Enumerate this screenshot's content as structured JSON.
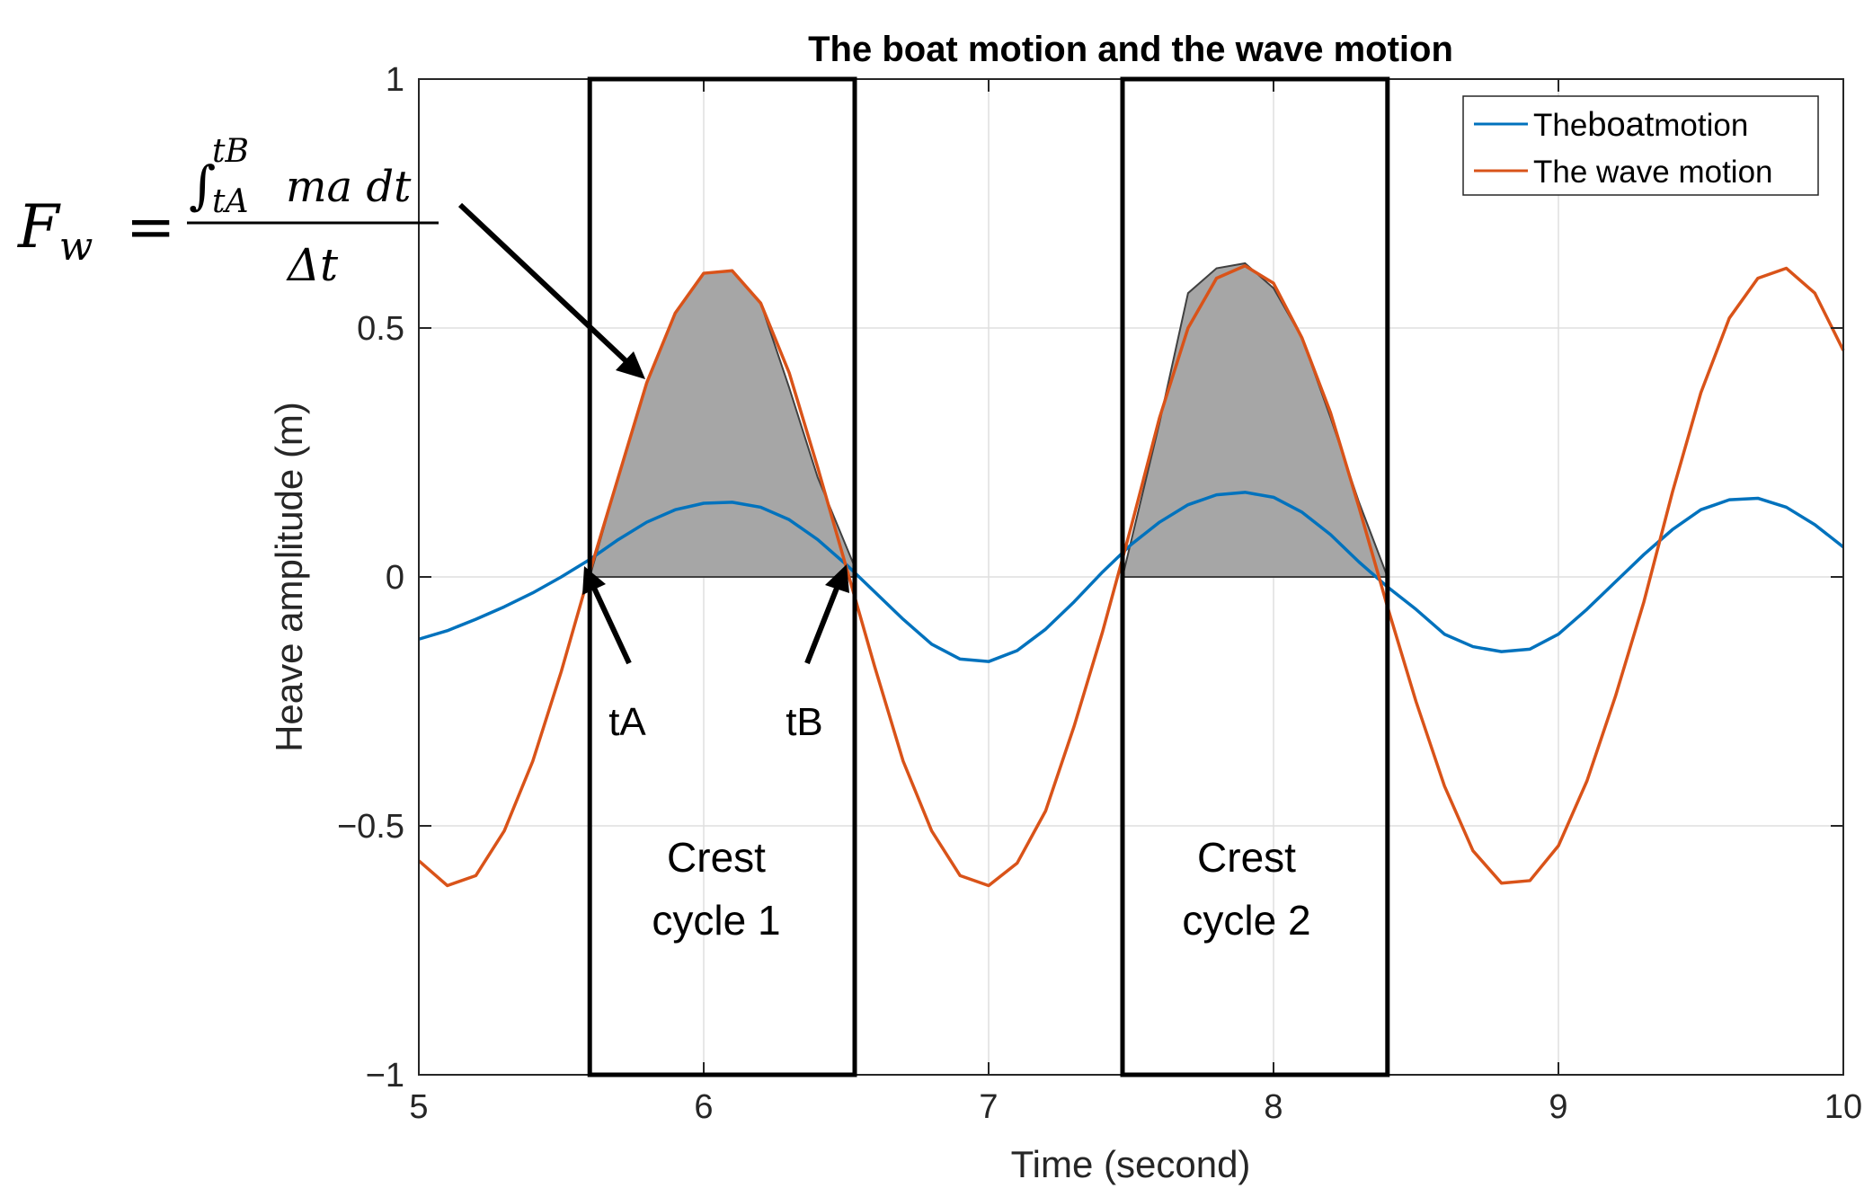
{
  "chart_data": {
    "type": "line",
    "title": "The boat motion and the wave motion",
    "xlabel": "Time (second)",
    "ylabel": "Heave amplitude (m)",
    "xlim": [
      5,
      10
    ],
    "ylim": [
      -1,
      1
    ],
    "grid": true,
    "legend_position": "top-right",
    "x_ticks": [
      5,
      6,
      7,
      8,
      9,
      10
    ],
    "x_tick_labels": [
      "5",
      "6",
      "7",
      "8",
      "9",
      "10"
    ],
    "y_ticks": [
      -1,
      -0.5,
      0,
      0.5,
      1
    ],
    "y_tick_labels": [
      "−1",
      "−0.5",
      "0",
      "0.5",
      "1"
    ],
    "series": [
      {
        "name": "The boat motion",
        "legend_prefix": "The",
        "legend_emphasis": "boat",
        "legend_suffix": "motion",
        "color": "#0072BD",
        "x": [
          5.0,
          5.1,
          5.2,
          5.3,
          5.4,
          5.5,
          5.6,
          5.7,
          5.8,
          5.9,
          6.0,
          6.1,
          6.2,
          6.3,
          6.4,
          6.5,
          6.6,
          6.7,
          6.8,
          6.9,
          7.0,
          7.1,
          7.2,
          7.3,
          7.4,
          7.5,
          7.6,
          7.7,
          7.8,
          7.9,
          8.0,
          8.1,
          8.2,
          8.3,
          8.4,
          8.5,
          8.6,
          8.7,
          8.8,
          8.9,
          9.0,
          9.1,
          9.2,
          9.3,
          9.4,
          9.5,
          9.6,
          9.7,
          9.8,
          9.9,
          10.0
        ],
        "y": [
          -0.125,
          -0.108,
          -0.085,
          -0.06,
          -0.032,
          0.0,
          0.035,
          0.075,
          0.11,
          0.135,
          0.148,
          0.15,
          0.14,
          0.115,
          0.075,
          0.025,
          -0.03,
          -0.085,
          -0.135,
          -0.165,
          -0.17,
          -0.148,
          -0.105,
          -0.05,
          0.01,
          0.065,
          0.11,
          0.145,
          0.165,
          0.17,
          0.16,
          0.13,
          0.085,
          0.03,
          -0.02,
          -0.065,
          -0.115,
          -0.14,
          -0.15,
          -0.145,
          -0.115,
          -0.065,
          -0.01,
          0.045,
          0.095,
          0.135,
          0.155,
          0.158,
          0.14,
          0.105,
          0.06
        ]
      },
      {
        "name": "The wave motion",
        "color": "#D95319",
        "x": [
          5.0,
          5.1,
          5.2,
          5.3,
          5.4,
          5.5,
          5.6,
          5.7,
          5.8,
          5.9,
          6.0,
          6.1,
          6.2,
          6.3,
          6.4,
          6.5,
          6.6,
          6.7,
          6.8,
          6.9,
          7.0,
          7.1,
          7.2,
          7.3,
          7.4,
          7.5,
          7.6,
          7.7,
          7.8,
          7.9,
          8.0,
          8.1,
          8.2,
          8.3,
          8.4,
          8.5,
          8.6,
          8.7,
          8.8,
          8.9,
          9.0,
          9.1,
          9.2,
          9.3,
          9.4,
          9.5,
          9.6,
          9.7,
          9.8,
          9.9,
          10.0
        ],
        "y": [
          -0.57,
          -0.62,
          -0.6,
          -0.51,
          -0.37,
          -0.19,
          0.01,
          0.2,
          0.39,
          0.53,
          0.61,
          0.615,
          0.55,
          0.41,
          0.22,
          0.02,
          -0.18,
          -0.37,
          -0.51,
          -0.6,
          -0.62,
          -0.575,
          -0.47,
          -0.3,
          -0.11,
          0.1,
          0.32,
          0.5,
          0.6,
          0.625,
          0.59,
          0.48,
          0.33,
          0.14,
          -0.06,
          -0.25,
          -0.42,
          -0.55,
          -0.615,
          -0.61,
          -0.54,
          -0.41,
          -0.24,
          -0.05,
          0.17,
          0.37,
          0.52,
          0.6,
          0.62,
          0.57,
          0.455
        ]
      }
    ],
    "crest_cycles": [
      {
        "label_line1": "Crest",
        "label_line2": "cycle 1",
        "t_start": 5.6,
        "t_end": 6.53,
        "shaded_t": [
          5.6,
          5.7,
          5.8,
          5.9,
          6.0,
          6.1,
          6.2,
          6.3,
          6.4,
          6.53
        ],
        "shaded_y": [
          0.0,
          0.2,
          0.39,
          0.53,
          0.61,
          0.615,
          0.55,
          0.38,
          0.2,
          0.02
        ]
      },
      {
        "label_line1": "Crest",
        "label_line2": "cycle 2",
        "t_start": 7.47,
        "t_end": 8.4,
        "shaded_t": [
          7.47,
          7.6,
          7.7,
          7.8,
          7.9,
          8.0,
          8.1,
          8.2,
          8.3,
          8.4
        ],
        "shaded_y": [
          0.0,
          0.31,
          0.57,
          0.62,
          0.63,
          0.58,
          0.48,
          0.32,
          0.15,
          0.0
        ]
      }
    ],
    "annotations": {
      "formula_lhs_main": "F",
      "formula_lhs_sub": "w",
      "formula_equals": "=",
      "formula_integral": "∫",
      "formula_upper": "tB",
      "formula_lower": "tA",
      "formula_integrand": "ma dt",
      "formula_denominator": "Δt",
      "tA_label": "tA",
      "tB_label": "tB"
    }
  }
}
